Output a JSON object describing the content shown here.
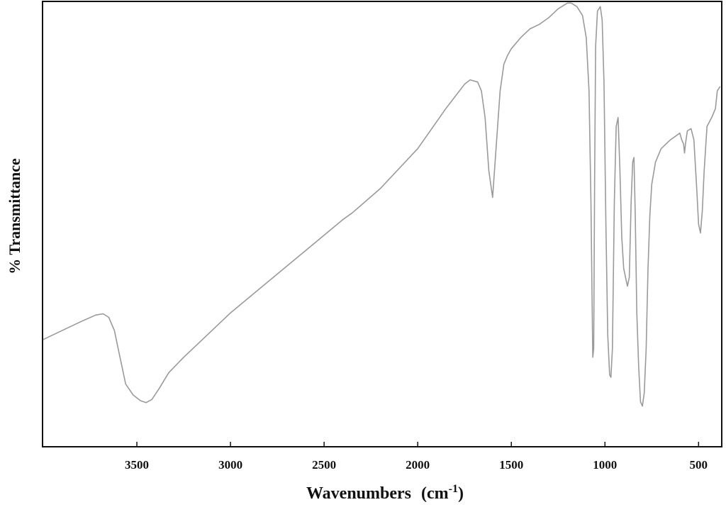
{
  "chart_data": {
    "type": "line",
    "xlabel": "Wavenumbers",
    "xlabel_unit": "(cm",
    "xlabel_unit_sup": "-1",
    "xlabel_unit_close": ")",
    "ylabel": "%  Transmittance",
    "xlim": [
      4000,
      380
    ],
    "x_reversed": true,
    "ylim": [
      0,
      100
    ],
    "y_ticks_shown": false,
    "grid": false,
    "legend": "none",
    "x_ticks": [
      3500,
      3000,
      2500,
      2000,
      1500,
      1000,
      500
    ],
    "x_tick_labels": [
      "3500",
      "3000",
      "2500",
      "2000",
      "1500",
      "1000",
      "500"
    ],
    "line_color": "#9a9a9a",
    "series": [
      {
        "x": [
          4000,
          3900,
          3800,
          3720,
          3680,
          3650,
          3620,
          3600,
          3580,
          3560,
          3520,
          3480,
          3450,
          3420,
          3380,
          3330,
          3250,
          3150,
          3000,
          2800,
          2600,
          2400,
          2350,
          2200,
          2000,
          1950,
          1850,
          1750,
          1720,
          1680,
          1660,
          1640,
          1620,
          1600,
          1580,
          1560,
          1540,
          1520,
          1500,
          1450,
          1400,
          1350,
          1300,
          1250,
          1200,
          1180,
          1150,
          1120,
          1100,
          1085,
          1075,
          1065,
          1060,
          1055,
          1050,
          1040,
          1025,
          1015,
          1005,
          995,
          985,
          975,
          968,
          960,
          950,
          940,
          930,
          920,
          910,
          900,
          890,
          880,
          870,
          860,
          852,
          845,
          838,
          830,
          820,
          810,
          800,
          790,
          780,
          770,
          760,
          750,
          730,
          700,
          650,
          600,
          590,
          580,
          575,
          570,
          560,
          540,
          525,
          510,
          500,
          490,
          480,
          470,
          455,
          430,
          410,
          400,
          385
        ],
        "y": [
          24,
          26,
          28,
          29.5,
          29.8,
          29,
          26,
          22,
          18,
          14,
          11.5,
          10.2,
          9.8,
          10.5,
          13,
          16.5,
          20,
          24,
          30,
          37,
          44,
          51,
          52.5,
          58,
          67,
          70,
          76,
          81.5,
          82.5,
          82,
          80,
          74,
          62,
          56,
          68,
          80,
          86,
          88,
          89.5,
          92,
          94,
          95,
          96.5,
          98.5,
          99.8,
          99.8,
          99,
          97,
          92,
          80,
          55,
          20,
          22,
          60,
          90,
          98,
          99,
          96,
          82,
          50,
          25,
          16,
          15.5,
          22,
          55,
          72,
          74,
          62,
          47,
          40,
          38,
          36,
          38,
          55,
          64,
          65,
          52,
          30,
          18,
          10,
          9,
          12,
          22,
          40,
          52,
          59,
          64,
          67,
          69,
          70.5,
          69,
          68,
          66,
          68,
          71,
          71.5,
          69,
          58,
          50,
          48,
          53,
          62,
          72,
          74,
          76,
          80,
          81
        ]
      }
    ]
  }
}
